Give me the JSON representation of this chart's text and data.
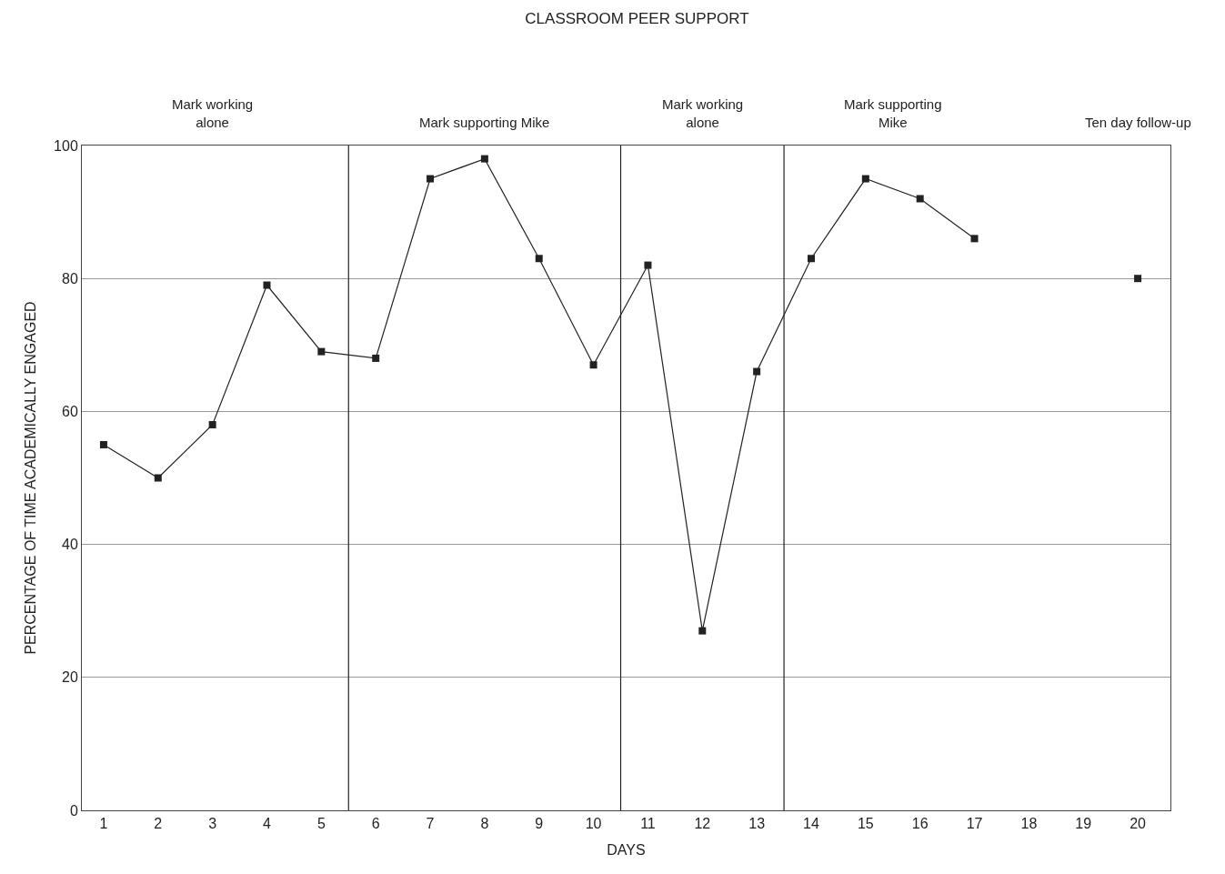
{
  "chart_data": {
    "type": "line",
    "title": "CLASSROOM PEER SUPPORT",
    "xlabel": "DAYS",
    "ylabel": "PERCENTAGE OF TIME ACADEMICALLY ENGAGED",
    "x": [
      1,
      2,
      3,
      4,
      5,
      6,
      7,
      8,
      9,
      10,
      11,
      12,
      13,
      14,
      15,
      16,
      17,
      18,
      19,
      20
    ],
    "series": [
      {
        "color": "#222222",
        "values": [
          55,
          50,
          58,
          79,
          69,
          68,
          95,
          98,
          83,
          67,
          82,
          27,
          66,
          83,
          95,
          92,
          86,
          null,
          null,
          80
        ]
      }
    ],
    "annotations": [
      "Mark working\nalone",
      "Mark supporting Mike",
      "Mark working\nalone",
      "Mark supporting\nMike",
      "Ten day follow-up"
    ],
    "ref_lines": [
      {
        "axis": "x",
        "value": 5.5,
        "color": "#222222"
      },
      {
        "axis": "x",
        "value": 10.5,
        "color": "#222222"
      },
      {
        "axis": "x",
        "value": 13.5,
        "color": "#222222"
      }
    ],
    "xlim": [
      0.6,
      20.6
    ],
    "xticks": [
      1,
      2,
      3,
      4,
      5,
      6,
      7,
      8,
      9,
      10,
      11,
      12,
      13,
      14,
      15,
      16,
      17,
      18,
      19,
      20
    ],
    "ylim": [
      0,
      100
    ],
    "yticks": [
      0,
      20,
      40,
      60,
      80,
      100
    ],
    "grid": "y",
    "marker": "square",
    "line_style": "solid"
  }
}
